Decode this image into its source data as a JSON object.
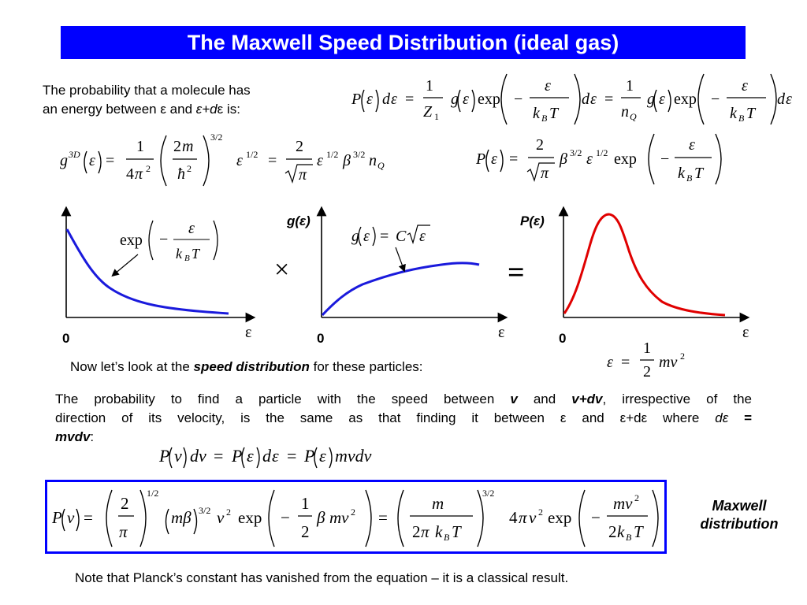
{
  "title": "The Maxwell Speed Distribution (ideal gas)",
  "intro": {
    "line1": "The probability that a molecule has",
    "line2_prefix": "an energy between ",
    "eps": "ε",
    "and": " and ",
    "eps_plus": "ε+d",
    "eps2": "ε",
    "is": " is:"
  },
  "graphs": {
    "left": {
      "origin": "0",
      "xlabel": "ε",
      "annotation": "exp"
    },
    "middle": {
      "origin": "0",
      "xlabel": "ε",
      "ylabel": "g(ε)"
    },
    "right": {
      "origin": "0",
      "xlabel": "ε",
      "ylabel": "P(ε)"
    },
    "times": "×",
    "equals": "="
  },
  "speed_line": {
    "prefix": "Now let’s look at the ",
    "emph": "speed distribution",
    "suffix": " for these particles:"
  },
  "prob_para": {
    "l1a": "The probability to find a particle with the speed between ",
    "v": "v",
    "and": " and ",
    "vdv": "v+dv",
    "l1b": ", irrespective of the",
    "l2a": "direction of its velocity, is the same as that finding it between ",
    "eps": "ε",
    "and2": " and ",
    "epsd": "ε+dε",
    "where": " where ",
    "deps": "dε",
    "eq": " =",
    "mvdv": "mvdv",
    "colon": ":"
  },
  "maxwell_label": {
    "line1": "Maxwell",
    "line2": "distribution"
  },
  "note": "Note that Planck’s constant has vanished from the equation – it is a classical result.",
  "colors": {
    "title_bg": "#0000ff",
    "curve_blue": "#1a1adc",
    "curve_red": "#e00000"
  }
}
